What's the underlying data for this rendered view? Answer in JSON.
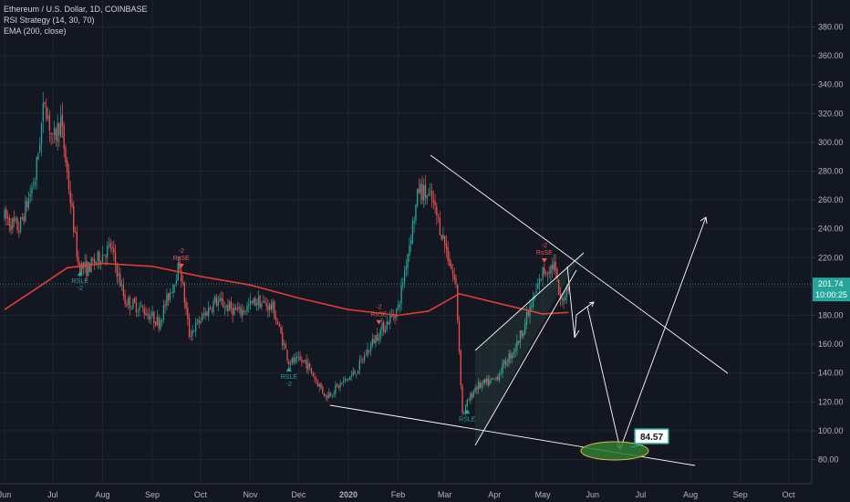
{
  "legend": {
    "symbol_line": "Ethereum / U.S. Dollar, 1D, COINBASE",
    "indicator_1": "RSI Strategy (14, 30, 70)",
    "indicator_2": "EMA (200, close)"
  },
  "price_tags": {
    "last_price": "201.74",
    "countdown": "10:00:25"
  },
  "annotation": {
    "target_value": "84.57"
  },
  "colors": {
    "background": "#131722",
    "up": "#26a69a",
    "down": "#ef5350",
    "ema": "#e03c31",
    "lines": "#ffffff",
    "ellipse": "#2e7d32",
    "target_box_border": "#26a69a"
  },
  "chart_data": {
    "type": "candlestick",
    "title": "Ethereum / U.S. Dollar, 1D, COINBASE",
    "ylim": [
      70,
      395
    ],
    "y_ticks": [
      "380.00",
      "360.00",
      "340.00",
      "320.00",
      "300.00",
      "280.00",
      "260.00",
      "240.00",
      "220.00",
      "200.00",
      "180.00",
      "160.00",
      "140.00",
      "120.00",
      "100.00",
      "80.00"
    ],
    "x_ticks": [
      "Jun",
      "Jul",
      "Aug",
      "Sep",
      "Oct",
      "Nov",
      "Dec",
      "2020",
      "Feb",
      "Mar",
      "Apr",
      "May",
      "Jun",
      "Jul",
      "Aug",
      "Sep",
      "Oct"
    ],
    "price_path": [
      [
        "2019-06-01",
        248
      ],
      [
        "2019-06-10",
        240
      ],
      [
        "2019-06-20",
        275
      ],
      [
        "2019-06-26",
        330
      ],
      [
        "2019-07-01",
        300
      ],
      [
        "2019-07-06",
        315
      ],
      [
        "2019-07-12",
        260
      ],
      [
        "2019-07-17",
        215
      ],
      [
        "2019-07-22",
        212
      ],
      [
        "2019-07-30",
        220
      ],
      [
        "2019-08-06",
        228
      ],
      [
        "2019-08-15",
        190
      ],
      [
        "2019-08-25",
        185
      ],
      [
        "2019-09-05",
        175
      ],
      [
        "2019-09-18",
        215
      ],
      [
        "2019-09-24",
        167
      ],
      [
        "2019-10-10",
        190
      ],
      [
        "2019-10-25",
        182
      ],
      [
        "2019-11-05",
        190
      ],
      [
        "2019-11-15",
        185
      ],
      [
        "2019-11-25",
        148
      ],
      [
        "2019-12-05",
        148
      ],
      [
        "2019-12-18",
        124
      ],
      [
        "2020-01-05",
        140
      ],
      [
        "2020-01-18",
        165
      ],
      [
        "2020-02-01",
        185
      ],
      [
        "2020-02-08",
        230
      ],
      [
        "2020-02-14",
        268
      ],
      [
        "2020-02-22",
        260
      ],
      [
        "2020-03-01",
        230
      ],
      [
        "2020-03-08",
        200
      ],
      [
        "2020-03-12",
        112
      ],
      [
        "2020-03-20",
        130
      ],
      [
        "2020-04-01",
        135
      ],
      [
        "2020-04-15",
        160
      ],
      [
        "2020-04-25",
        190
      ],
      [
        "2020-05-01",
        210
      ],
      [
        "2020-05-08",
        215
      ],
      [
        "2020-05-12",
        188
      ],
      [
        "2020-05-17",
        201.74
      ]
    ],
    "ema200": [
      [
        "2019-06-01",
        184
      ],
      [
        "2019-06-20",
        198
      ],
      [
        "2019-07-10",
        213
      ],
      [
        "2019-08-01",
        216
      ],
      [
        "2019-09-01",
        214
      ],
      [
        "2019-10-01",
        207
      ],
      [
        "2019-11-01",
        201
      ],
      [
        "2019-12-01",
        192
      ],
      [
        "2020-01-01",
        184
      ],
      [
        "2020-02-01",
        180
      ],
      [
        "2020-02-20",
        183
      ],
      [
        "2020-03-10",
        195
      ],
      [
        "2020-04-01",
        189
      ],
      [
        "2020-05-01",
        181
      ],
      [
        "2020-05-17",
        182
      ]
    ],
    "signals": [
      {
        "date": "2019-07-18",
        "text": "RSLE\n-2",
        "kind": "buy"
      },
      {
        "date": "2019-09-19",
        "text": "-2\nRsSE",
        "kind": "sell"
      },
      {
        "date": "2019-11-25",
        "text": "RSLE\n-2",
        "kind": "buy"
      },
      {
        "date": "2020-01-20",
        "text": "-2\nRsSE",
        "kind": "sell"
      },
      {
        "date": "2020-03-15",
        "text": "RSLE",
        "kind": "buy"
      },
      {
        "date": "2020-05-02",
        "text": "-2\nRsSE",
        "kind": "sell"
      }
    ],
    "last_price": 201.74
  }
}
